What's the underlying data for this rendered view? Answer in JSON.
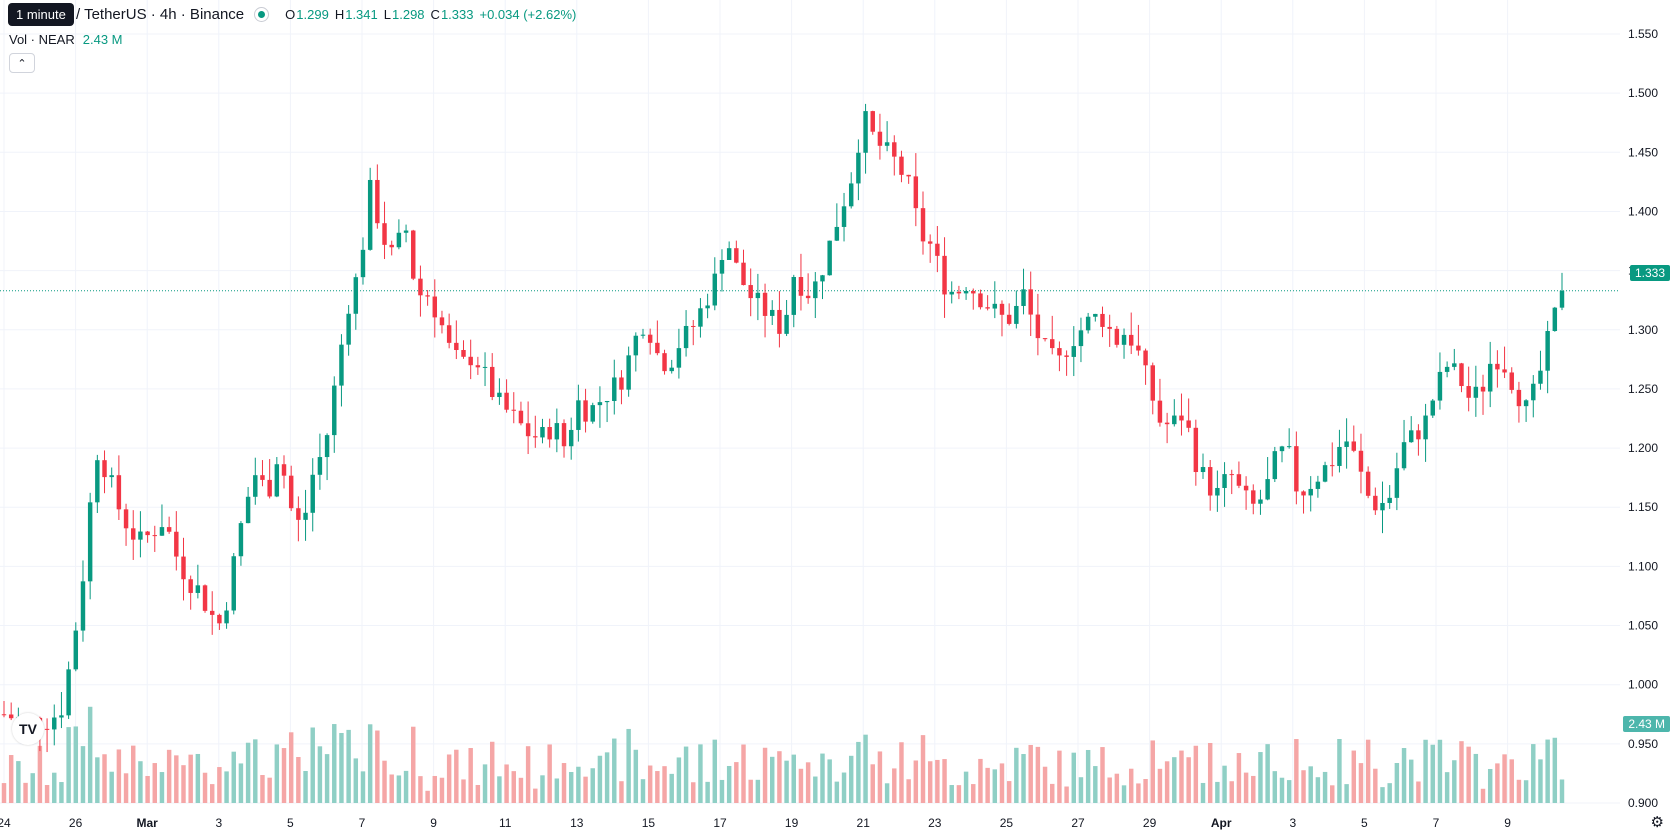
{
  "tooltip": "1 minute",
  "header": {
    "title": "/ TetherUS · 4h · Binance",
    "ohlc": [
      {
        "k": "O",
        "v": "1.299"
      },
      {
        "k": "H",
        "v": "1.341"
      },
      {
        "k": "L",
        "v": "1.298"
      },
      {
        "k": "C",
        "v": "1.333"
      }
    ],
    "change": "+0.034 (+2.62%)"
  },
  "volume": {
    "label": "Vol · NEAR",
    "value": "2.43 M"
  },
  "badges": {
    "price": "1.333",
    "volume": "2.43 M"
  },
  "colors": {
    "up": "#089981",
    "down": "#f23645",
    "vol_up": "#8fcfc5",
    "vol_down": "#f5a6a6",
    "grid": "#f0f3fa"
  },
  "chart_data": {
    "type": "candlestick",
    "interval": "4h",
    "ylim": [
      0.9,
      1.55
    ],
    "y_ticks": [
      "1.550",
      "1.500",
      "1.450",
      "1.400",
      "1.350",
      "1.300",
      "1.250",
      "1.200",
      "1.150",
      "1.100",
      "1.050",
      "1.000",
      "0.950",
      "0.900"
    ],
    "x_ticks": [
      "24",
      "26",
      "Mar",
      "3",
      "5",
      "7",
      "9",
      "11",
      "13",
      "15",
      "17",
      "19",
      "21",
      "23",
      "25",
      "27",
      "29",
      "Apr",
      "3",
      "5",
      "7",
      "9"
    ],
    "last_close": 1.333,
    "volume_last": "2.43 M",
    "close_path": [
      [
        0,
        0.975
      ],
      [
        2,
        0.968
      ],
      [
        4,
        0.97
      ],
      [
        5,
        0.98
      ],
      [
        6,
        1.03
      ],
      [
        7,
        1.1
      ],
      [
        8,
        1.2
      ],
      [
        9,
        1.18
      ],
      [
        10,
        1.15
      ],
      [
        11,
        1.13
      ],
      [
        12,
        1.12
      ],
      [
        13,
        1.13
      ],
      [
        14,
        1.14
      ],
      [
        15,
        1.11
      ],
      [
        16,
        1.09
      ],
      [
        17,
        1.08
      ],
      [
        18,
        1.06
      ],
      [
        19,
        1.05
      ],
      [
        20,
        1.1
      ],
      [
        21,
        1.15
      ],
      [
        22,
        1.18
      ],
      [
        23,
        1.16
      ],
      [
        24,
        1.2
      ],
      [
        25,
        1.15
      ],
      [
        26,
        1.13
      ],
      [
        27,
        1.18
      ],
      [
        28,
        1.2
      ],
      [
        29,
        1.26
      ],
      [
        30,
        1.32
      ],
      [
        31,
        1.35
      ],
      [
        32,
        1.42
      ],
      [
        33,
        1.38
      ],
      [
        34,
        1.36
      ],
      [
        35,
        1.39
      ],
      [
        36,
        1.33
      ],
      [
        37,
        1.33
      ],
      [
        38,
        1.31
      ],
      [
        39,
        1.28
      ],
      [
        40,
        1.27
      ],
      [
        41,
        1.28
      ],
      [
        42,
        1.26
      ],
      [
        43,
        1.24
      ],
      [
        44,
        1.23
      ],
      [
        45,
        1.22
      ],
      [
        46,
        1.21
      ],
      [
        47,
        1.21
      ],
      [
        48,
        1.22
      ],
      [
        49,
        1.2
      ],
      [
        50,
        1.24
      ],
      [
        51,
        1.23
      ],
      [
        52,
        1.24
      ],
      [
        53,
        1.25
      ],
      [
        54,
        1.26
      ],
      [
        55,
        1.29
      ],
      [
        56,
        1.31
      ],
      [
        57,
        1.28
      ],
      [
        58,
        1.27
      ],
      [
        59,
        1.29
      ],
      [
        60,
        1.3
      ],
      [
        61,
        1.32
      ],
      [
        62,
        1.34
      ],
      [
        63,
        1.38
      ],
      [
        64,
        1.35
      ],
      [
        65,
        1.33
      ],
      [
        66,
        1.32
      ],
      [
        67,
        1.31
      ],
      [
        68,
        1.3
      ],
      [
        69,
        1.35
      ],
      [
        70,
        1.33
      ],
      [
        71,
        1.34
      ],
      [
        72,
        1.37
      ],
      [
        73,
        1.4
      ],
      [
        74,
        1.43
      ],
      [
        75,
        1.48
      ],
      [
        76,
        1.46
      ],
      [
        77,
        1.45
      ],
      [
        78,
        1.44
      ],
      [
        79,
        1.42
      ],
      [
        80,
        1.38
      ],
      [
        81,
        1.37
      ],
      [
        82,
        1.34
      ],
      [
        83,
        1.33
      ],
      [
        84,
        1.34
      ],
      [
        85,
        1.33
      ],
      [
        86,
        1.32
      ],
      [
        87,
        1.31
      ],
      [
        88,
        1.31
      ],
      [
        89,
        1.33
      ],
      [
        90,
        1.3
      ],
      [
        91,
        1.28
      ],
      [
        92,
        1.27
      ],
      [
        93,
        1.29
      ],
      [
        94,
        1.3
      ],
      [
        95,
        1.31
      ],
      [
        96,
        1.31
      ],
      [
        97,
        1.29
      ],
      [
        98,
        1.3
      ],
      [
        99,
        1.28
      ],
      [
        100,
        1.25
      ],
      [
        101,
        1.22
      ],
      [
        102,
        1.22
      ],
      [
        103,
        1.23
      ],
      [
        104,
        1.19
      ],
      [
        105,
        1.17
      ],
      [
        106,
        1.16
      ],
      [
        107,
        1.18
      ],
      [
        108,
        1.16
      ],
      [
        109,
        1.15
      ],
      [
        110,
        1.16
      ],
      [
        111,
        1.19
      ],
      [
        112,
        1.2
      ],
      [
        113,
        1.16
      ],
      [
        114,
        1.17
      ],
      [
        115,
        1.18
      ],
      [
        116,
        1.19
      ],
      [
        117,
        1.21
      ],
      [
        118,
        1.19
      ],
      [
        119,
        1.16
      ],
      [
        120,
        1.15
      ],
      [
        121,
        1.16
      ],
      [
        122,
        1.2
      ],
      [
        123,
        1.21
      ],
      [
        124,
        1.22
      ],
      [
        125,
        1.25
      ],
      [
        126,
        1.27
      ],
      [
        127,
        1.26
      ],
      [
        128,
        1.24
      ],
      [
        129,
        1.25
      ],
      [
        130,
        1.28
      ],
      [
        131,
        1.27
      ],
      [
        132,
        1.25
      ],
      [
        133,
        1.23
      ],
      [
        134,
        1.26
      ],
      [
        135,
        1.299
      ],
      [
        136,
        1.333
      ]
    ]
  }
}
